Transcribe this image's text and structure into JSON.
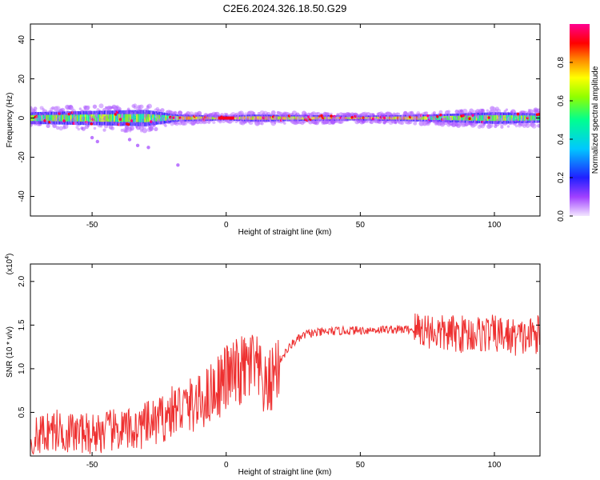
{
  "title": "C2E6.2024.326.18.50.G29",
  "colors": {
    "snr_line": "#ee3030",
    "text": "#000000",
    "frame": "#000000",
    "background": "#ffffff"
  },
  "chart_data": [
    {
      "type": "heatmap",
      "title": "C2E6.2024.326.18.50.G29",
      "xlabel": "Height of straight line (km)",
      "ylabel": "Frequency (Hz)",
      "xlim": [
        -73,
        117
      ],
      "ylim": [
        -50,
        48
      ],
      "xticks": [
        -50,
        0,
        50,
        100
      ],
      "yticks": [
        -40,
        -20,
        0,
        20,
        40
      ],
      "colormap": "rainbow (violet → blue → cyan → green → yellow → red → magenta)",
      "colorbar": {
        "label": "Normalized spectral amplitude",
        "range": [
          0,
          1
        ],
        "ticks": [
          0.0,
          0.2,
          0.4,
          0.6,
          0.8
        ]
      },
      "description_data": {
        "band_center_hz": 0,
        "band_halfwidth_hz": [
          {
            "x": -73,
            "halfwidth": 5
          },
          {
            "x": -30,
            "halfwidth": 7
          },
          {
            "x": -18,
            "halfwidth": 3
          },
          {
            "x": 0,
            "halfwidth": 2
          },
          {
            "x": 10,
            "halfwidth": 3
          },
          {
            "x": 50,
            "halfwidth": 2
          },
          {
            "x": 75,
            "halfwidth": 3
          },
          {
            "x": 100,
            "halfwidth": 5
          },
          {
            "x": 117,
            "halfwidth": 4
          }
        ],
        "scatter_tail": [
          {
            "x": -50,
            "y": -10
          },
          {
            "x": -48,
            "y": -12
          },
          {
            "x": -36,
            "y": -11
          },
          {
            "x": -33,
            "y": -14
          },
          {
            "x": -29,
            "y": -15
          },
          {
            "x": -18,
            "y": -24
          }
        ]
      },
      "grid": false
    },
    {
      "type": "line",
      "xlabel": "Height of straight line (km)",
      "ylabel": "SNR (10 * v/v)",
      "y_multiplier_label": "(x10^4)",
      "xlim": [
        -73,
        117
      ],
      "ylim": [
        0,
        2.2
      ],
      "xticks": [
        -50,
        0,
        50,
        100
      ],
      "yticks": [
        0.5,
        1.0,
        1.5,
        2.0
      ],
      "series": [
        {
          "color": "#ee3030",
          "x": [
            -73,
            -65,
            -55,
            -45,
            -35,
            -25,
            -18,
            -10,
            -5,
            0,
            5,
            10,
            15,
            20,
            25,
            30,
            40,
            50,
            60,
            70,
            75,
            80,
            90,
            100,
            110,
            117
          ],
          "y": [
            0.2,
            0.3,
            0.25,
            0.28,
            0.3,
            0.4,
            0.55,
            0.6,
            0.75,
            0.9,
            0.95,
            1.05,
            0.75,
            1.1,
            1.3,
            1.4,
            1.43,
            1.44,
            1.45,
            1.45,
            1.45,
            1.4,
            1.4,
            1.4,
            1.35,
            1.4
          ]
        }
      ],
      "grid": false
    }
  ]
}
